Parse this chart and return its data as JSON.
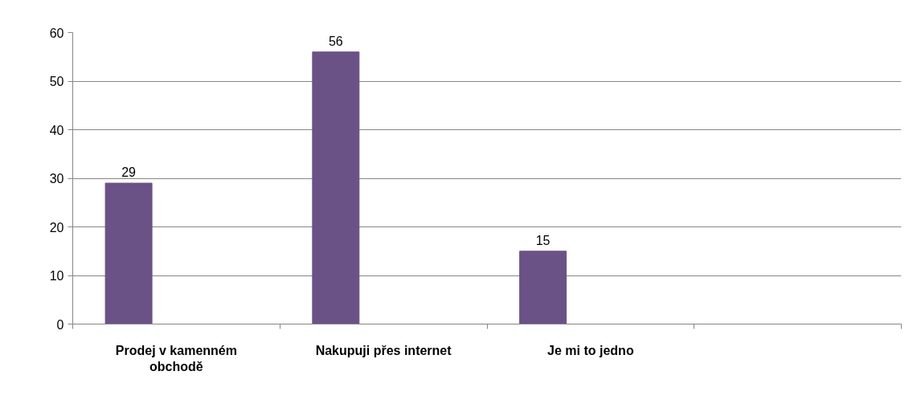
{
  "chart_data": {
    "type": "bar",
    "categories": [
      "Prodej v kamenném obchodě",
      "Nakupuji přes internet",
      "Je mi to jedno",
      null
    ],
    "values": [
      29,
      56,
      15,
      null
    ],
    "color": "#6a5287",
    "ylim": [
      0,
      60
    ],
    "yticks": [
      0,
      10,
      20,
      30,
      40,
      50,
      60
    ],
    "grid": "y",
    "data_labels": true
  }
}
